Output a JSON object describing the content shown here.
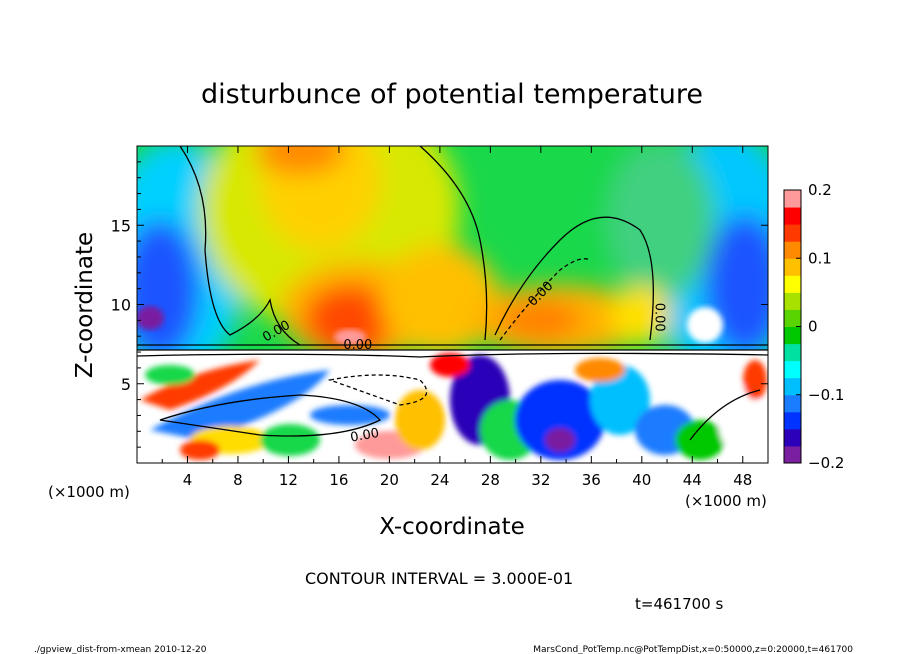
{
  "chart_data": {
    "type": "heatmap",
    "title": "disturbunce of potential temperature",
    "xlabel": "X-coordinate",
    "ylabel": "Z-coordinate",
    "x_unit_left": "(×1000 m)",
    "x_unit_right": "(×1000 m)",
    "xlim": [
      0,
      50
    ],
    "ylim": [
      0,
      20
    ],
    "x_ticks": [
      4,
      8,
      12,
      16,
      20,
      24,
      28,
      32,
      36,
      40,
      44,
      48
    ],
    "y_ticks": [
      5,
      10,
      15
    ],
    "colorbar": {
      "ticks": [
        0.2,
        0.1,
        0,
        -0.1,
        -0.2
      ],
      "tick_labels": [
        "0.2",
        "0.1",
        "0",
        "−0.1",
        "−0.2"
      ],
      "range": [
        -0.2,
        0.2
      ],
      "colors": [
        "#7a1fa0",
        "#2c00b8",
        "#0033ff",
        "#1a7cff",
        "#00bfff",
        "#00ffff",
        "#00e0a0",
        "#00c800",
        "#5ad400",
        "#a8e000",
        "#ffff00",
        "#ffc000",
        "#ff8a00",
        "#ff3a00",
        "#ff0000",
        "#ff9a9a"
      ]
    },
    "contour_labels": [
      "0.00",
      "0.00",
      "0.00",
      "0.00",
      "0.00"
    ],
    "contour_interval_text": "CONTOUR INTERVAL = 3.000E-01",
    "time_text": "t=461700 s"
  },
  "footer": {
    "left": "./gpview_dist-from-xmean  2010-12-20",
    "right": "MarsCond_PotTemp.nc@PotTempDist,x=0:50000,z=0:20000,t=461700"
  }
}
